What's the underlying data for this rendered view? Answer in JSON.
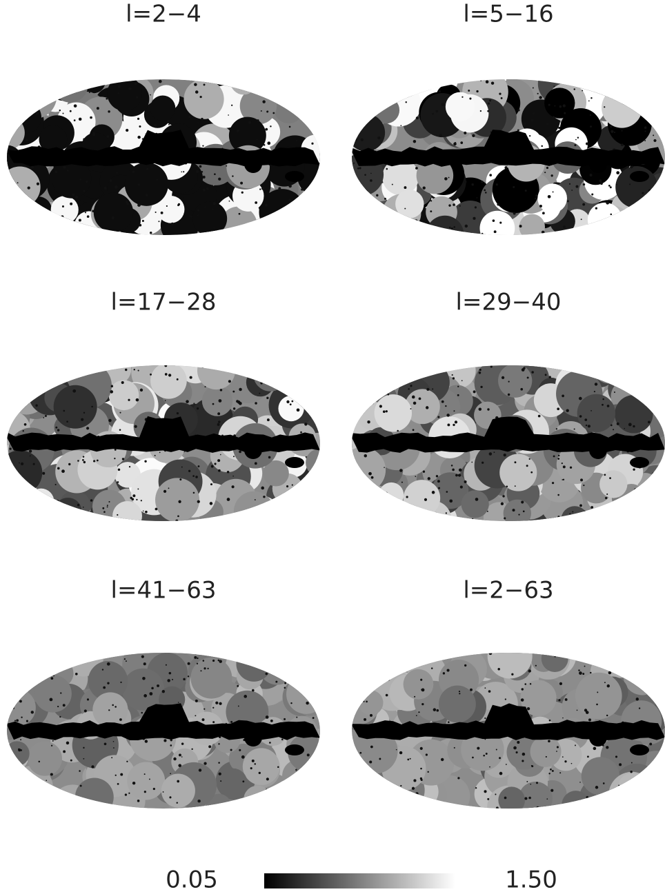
{
  "panels": [
    {
      "title": "l=2−4"
    },
    {
      "title": "l=5−16"
    },
    {
      "title": "l=17−28"
    },
    {
      "title": "l=29−40"
    },
    {
      "title": "l=41−63"
    },
    {
      "title": "l=2−63"
    }
  ],
  "colorbar": {
    "min_label": "0.05",
    "max_label": "1.50"
  }
}
